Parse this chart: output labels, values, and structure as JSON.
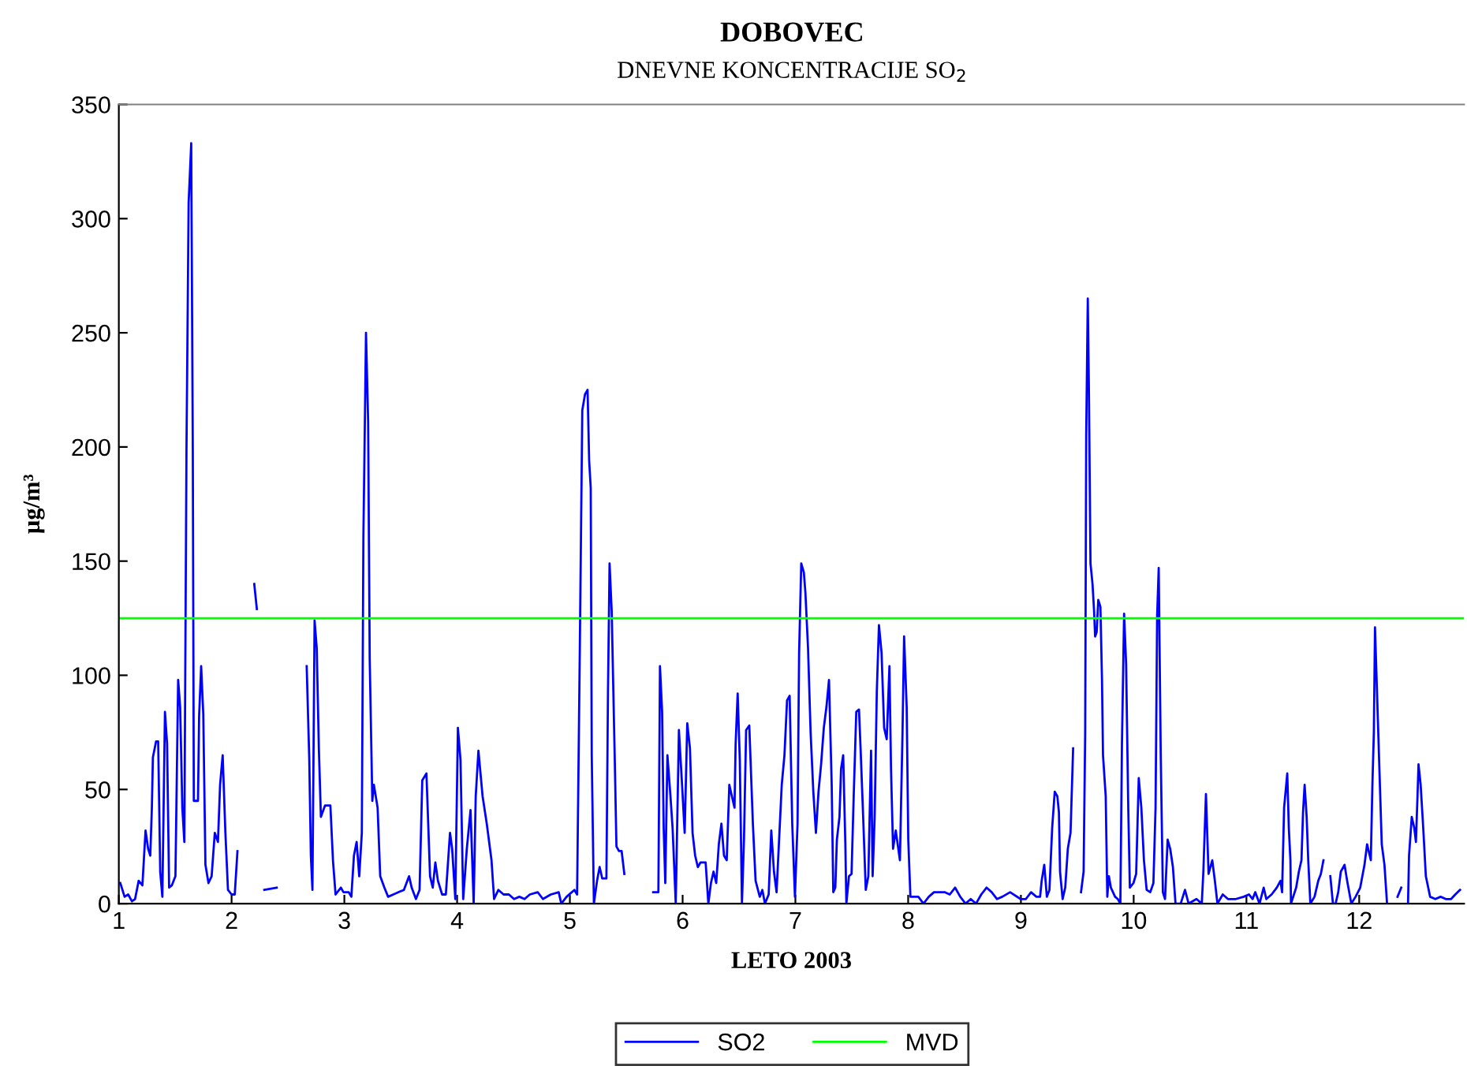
{
  "chart_data": {
    "type": "line",
    "title": "DOBOVEC",
    "subtitle": "DNEVNE KONCENTRACIJE SO$_{2}$",
    "xlabel": "LETO 2003",
    "ylabel": "µg/m³",
    "xlim": [
      1,
      12.93
    ],
    "xticks": [
      1,
      2,
      3,
      4,
      5,
      6,
      7,
      8,
      9,
      10,
      11,
      12
    ],
    "ylim": [
      0,
      350
    ],
    "yticks": [
      0,
      50,
      100,
      150,
      200,
      250,
      300,
      350
    ],
    "grid": false,
    "legend": "bottom",
    "marker": "none",
    "line_style": "solid",
    "series": [
      {
        "name": "SO2",
        "color": "#0000ff",
        "x": [
          1.013,
          1.051,
          1.083,
          1.116,
          1.144,
          1.176,
          1.209,
          1.223,
          1.237,
          1.26,
          1.279,
          1.293,
          1.302,
          1.33,
          1.349,
          1.367,
          1.386,
          1.409,
          1.428,
          1.446,
          1.47,
          1.502,
          1.526,
          1.544,
          1.563,
          1.581,
          1.6,
          1.619,
          1.642,
          1.656,
          1.665,
          1.702,
          1.712,
          1.73,
          1.749,
          1.768,
          1.795,
          1.823,
          1.851,
          1.879,
          1.898,
          1.921,
          1.945,
          1.968,
          2.0,
          2.028,
          2.052,
          2.12,
          2.201,
          2.224,
          2.25,
          2.29,
          2.4,
          2.5,
          2.666,
          2.689,
          2.703,
          2.717,
          2.736,
          2.755,
          2.774,
          2.792,
          2.829,
          2.876,
          2.899,
          2.922,
          2.969,
          2.992,
          3.039,
          3.062,
          3.085,
          3.109,
          3.132,
          3.155,
          3.169,
          3.192,
          3.211,
          3.225,
          3.248,
          3.262,
          3.295,
          3.318,
          3.355,
          3.388,
          3.434,
          3.481,
          3.528,
          3.574,
          3.597,
          3.635,
          3.667,
          3.691,
          3.728,
          3.76,
          3.784,
          3.807,
          3.83,
          3.867,
          3.9,
          3.937,
          3.956,
          3.984,
          4.007,
          4.03,
          4.054,
          4.086,
          4.119,
          4.147,
          4.165,
          4.189,
          4.226,
          4.263,
          4.305,
          4.328,
          4.366,
          4.412,
          4.459,
          4.505,
          4.552,
          4.598,
          4.645,
          4.715,
          4.761,
          4.831,
          4.901,
          4.924,
          4.971,
          5.04,
          5.064,
          5.087,
          5.11,
          5.134,
          5.157,
          5.171,
          5.185,
          5.194,
          5.213,
          5.241,
          5.264,
          5.287,
          5.324,
          5.338,
          5.352,
          5.371,
          5.399,
          5.413,
          5.436,
          5.459,
          5.483,
          5.6,
          5.739,
          5.785,
          5.799,
          5.818,
          5.832,
          5.846,
          5.865,
          5.892,
          5.911,
          5.939,
          5.967,
          5.995,
          6.018,
          6.041,
          6.065,
          6.088,
          6.111,
          6.135,
          6.158,
          6.204,
          6.228,
          6.251,
          6.274,
          6.298,
          6.321,
          6.344,
          6.367,
          6.391,
          6.414,
          6.437,
          6.46,
          6.47,
          6.488,
          6.507,
          6.526,
          6.544,
          6.563,
          6.591,
          6.623,
          6.647,
          6.684,
          6.707,
          6.73,
          6.763,
          6.786,
          6.81,
          6.833,
          6.879,
          6.903,
          6.926,
          6.949,
          6.972,
          6.996,
          7.019,
          7.033,
          7.052,
          7.075,
          7.089,
          7.112,
          7.135,
          7.159,
          7.182,
          7.205,
          7.228,
          7.252,
          7.275,
          7.298,
          7.322,
          7.336,
          7.354,
          7.368,
          7.391,
          7.405,
          7.424,
          7.443,
          7.452,
          7.475,
          7.498,
          7.517,
          7.54,
          7.564,
          7.578,
          7.601,
          7.624,
          7.647,
          7.671,
          7.685,
          7.703,
          7.722,
          7.741,
          7.764,
          7.787,
          7.81,
          7.834,
          7.848,
          7.866,
          7.89,
          7.927,
          7.95,
          7.964,
          7.987,
          8.001,
          8.02,
          8.09,
          8.136,
          8.183,
          8.229,
          8.276,
          8.323,
          8.369,
          8.416,
          8.462,
          8.509,
          8.555,
          8.602,
          8.648,
          8.695,
          8.741,
          8.788,
          8.835,
          8.904,
          8.997,
          9.044,
          9.09,
          9.137,
          9.17,
          9.184,
          9.207,
          9.23,
          9.253,
          9.277,
          9.3,
          9.323,
          9.337,
          9.347,
          9.37,
          9.393,
          9.416,
          9.44,
          9.463,
          9.5,
          9.533,
          9.556,
          9.57,
          9.579,
          9.593,
          9.603,
          9.617,
          9.635,
          9.649,
          9.658,
          9.672,
          9.686,
          9.705,
          9.719,
          9.728,
          9.752,
          9.766,
          9.78,
          9.798,
          9.835,
          9.859,
          9.882,
          9.896,
          9.915,
          9.933,
          9.952,
          9.966,
          9.998,
          10.022,
          10.045,
          10.068,
          10.091,
          10.115,
          10.147,
          10.175,
          10.194,
          10.208,
          10.222,
          10.24,
          10.259,
          10.278,
          10.301,
          10.324,
          10.348,
          10.371,
          10.417,
          10.455,
          10.487,
          10.557,
          10.604,
          10.618,
          10.641,
          10.664,
          10.697,
          10.72,
          10.743,
          10.79,
          10.836,
          10.906,
          10.976,
          11.022,
          11.055,
          11.078,
          11.116,
          11.153,
          11.176,
          11.223,
          11.269,
          11.302,
          11.316,
          11.334,
          11.362,
          11.376,
          11.39,
          11.395,
          11.441,
          11.465,
          11.488,
          11.502,
          11.516,
          11.534,
          11.548,
          11.567,
          11.604,
          11.637,
          11.66,
          11.683,
          11.71,
          11.744,
          11.767,
          11.791,
          11.814,
          11.837,
          11.87,
          11.893,
          11.93,
          11.968,
          12.009,
          12.047,
          12.07,
          12.103,
          12.117,
          12.13,
          12.14,
          12.2,
          12.224,
          12.247,
          12.3,
          12.34,
          12.373,
          12.4,
          12.433,
          12.442,
          12.466,
          12.489,
          12.503,
          12.517,
          12.526,
          12.545,
          12.568,
          12.591,
          12.629,
          12.675,
          12.722,
          12.768,
          12.815,
          12.852,
          12.894
        ],
        "values": [
          9,
          3,
          4,
          1,
          2,
          10,
          8,
          20,
          32,
          24,
          21,
          42,
          64,
          71,
          71,
          14,
          3,
          84,
          70,
          7,
          8,
          12,
          98,
          86,
          42,
          27,
          199,
          307,
          333,
          198,
          45,
          45,
          82,
          104,
          83,
          17,
          9,
          12,
          31,
          27,
          52,
          65,
          31,
          6,
          4,
          4,
          23,
          null,
          140,
          129,
          null,
          6,
          7,
          null,
          104,
          63,
          21,
          6,
          124,
          112,
          68,
          38,
          43,
          43,
          19,
          4,
          7,
          5,
          5,
          3,
          21,
          27,
          12,
          31,
          161,
          250,
          211,
          107,
          45,
          52,
          42,
          12,
          7,
          3,
          4,
          5,
          6,
          12,
          7,
          2,
          6,
          54,
          57,
          12,
          7,
          18,
          10,
          4,
          4,
          31,
          24,
          2,
          77,
          63,
          2,
          24,
          41,
          0,
          47,
          67,
          47,
          35,
          19,
          2,
          6,
          4,
          4,
          2,
          3,
          2,
          4,
          5,
          2,
          4,
          5,
          0,
          3,
          6,
          4,
          106,
          216,
          223,
          225,
          194,
          182,
          65,
          0,
          10,
          16,
          11,
          11,
          93,
          149,
          128,
          61,
          25,
          23,
          23,
          13,
          null,
          5,
          5,
          104,
          84,
          33,
          9,
          65,
          47,
          33,
          0,
          76,
          52,
          31,
          79,
          68,
          31,
          21,
          16,
          18,
          18,
          0,
          9,
          14,
          9,
          26,
          35,
          21,
          19,
          52,
          47,
          42,
          70,
          92,
          63,
          0,
          28,
          76,
          78,
          35,
          10,
          3,
          6,
          0,
          4,
          32,
          14,
          5,
          52,
          65,
          89,
          91,
          35,
          3,
          35,
          110,
          149,
          145,
          136,
          112,
          75,
          49,
          31,
          49,
          61,
          77,
          86,
          98,
          52,
          5,
          7,
          28,
          38,
          59,
          65,
          26,
          0,
          12,
          13,
          47,
          84,
          85,
          68,
          38,
          6,
          12,
          67,
          12,
          38,
          93,
          122,
          110,
          77,
          72,
          104,
          59,
          24,
          32,
          19,
          75,
          117,
          86,
          28,
          3,
          3,
          0,
          3,
          5,
          5,
          5,
          4,
          7,
          3,
          0,
          2,
          0,
          4,
          7,
          5,
          2,
          3,
          5,
          2,
          2,
          5,
          3,
          3,
          10,
          17,
          3,
          6,
          33,
          49,
          47,
          40,
          14,
          2,
          7,
          24,
          31,
          68,
          null,
          5,
          14,
          75,
          205,
          265,
          225,
          149,
          140,
          128,
          117,
          119,
          133,
          130,
          98,
          65,
          47,
          3,
          12,
          7,
          3,
          2,
          0,
          70,
          127,
          105,
          42,
          7,
          9,
          13,
          55,
          42,
          19,
          6,
          5,
          9,
          42,
          126,
          147,
          65,
          5,
          2,
          28,
          24,
          16,
          0,
          0,
          6,
          0,
          2,
          0,
          14,
          48,
          13,
          19,
          10,
          0,
          4,
          2,
          2,
          3,
          4,
          2,
          5,
          0,
          7,
          2,
          4,
          7,
          10,
          5,
          42,
          57,
          33,
          19,
          0,
          7,
          14,
          19,
          40,
          52,
          38,
          19,
          0,
          3,
          10,
          13,
          19,
          null,
          12,
          0,
          0,
          5,
          14,
          17,
          10,
          0,
          3,
          7,
          17,
          26,
          19,
          52,
          75,
          121,
          26,
          17,
          0,
          null,
          3,
          7,
          null,
          0,
          21,
          38,
          33,
          27,
          47,
          61,
          52,
          33,
          12,
          3,
          2,
          3,
          2,
          2,
          4,
          6
        ]
      },
      {
        "name": "MVD",
        "color": "#00ff00",
        "x": [
          1,
          12.93
        ],
        "values": [
          125,
          125
        ]
      }
    ]
  }
}
